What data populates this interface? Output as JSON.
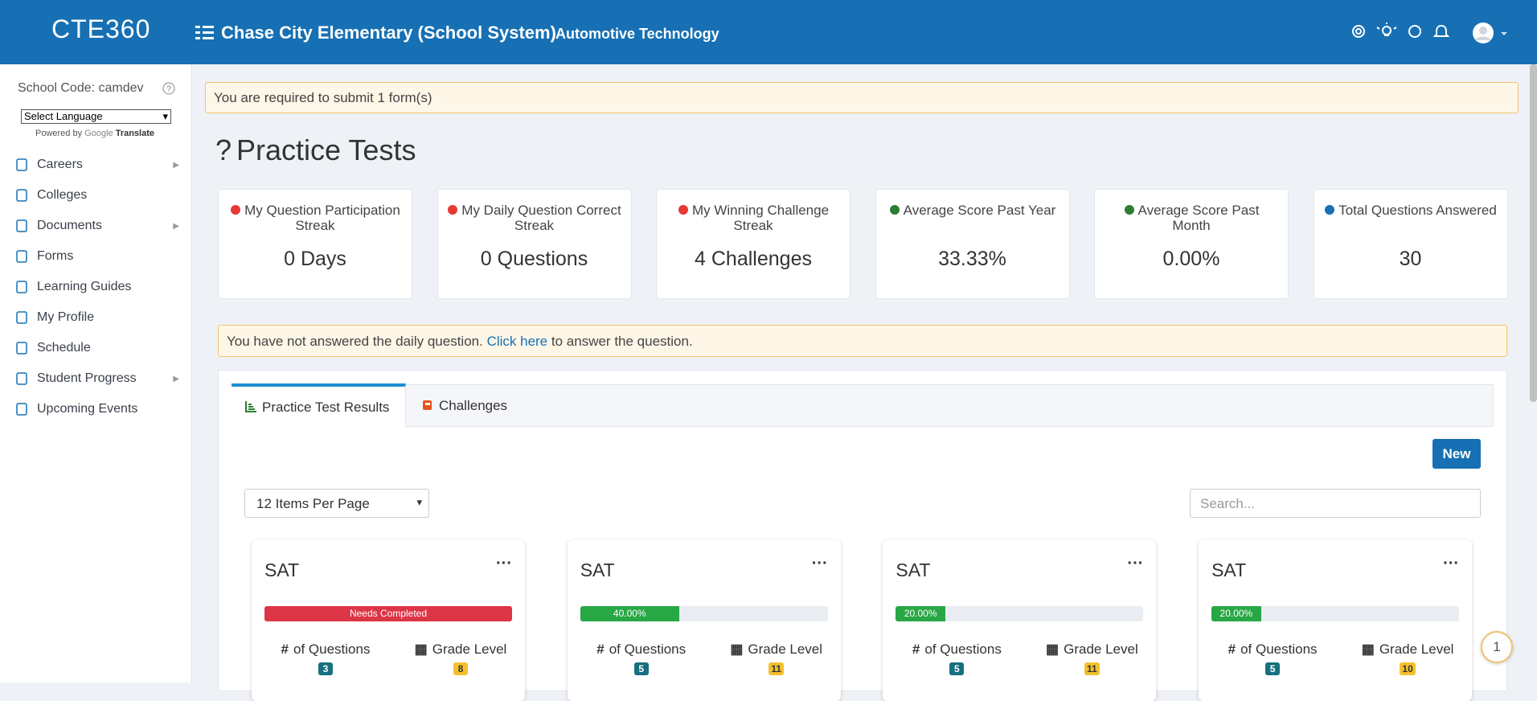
{
  "header": {
    "logo": "CTE360",
    "title": "Chase City Elementary (School System)",
    "subtitle": "Automotive Technology"
  },
  "sidebar": {
    "school_code": "School Code: camdev",
    "language_select": "Select Language",
    "powered_by": "Powered by",
    "google": "Google",
    "translate": "Translate",
    "items": [
      "Careers",
      "Colleges",
      "Documents",
      "Forms",
      "Learning Guides",
      "My Profile",
      "Schedule",
      "Student Progress",
      "Upcoming Events"
    ]
  },
  "alert": "You are required to submit 1 form(s)",
  "page_title": "Practice Tests",
  "stats": [
    {
      "label": "My Question Participation Streak",
      "value": "0 Days"
    },
    {
      "label": "My Daily Question Correct Streak",
      "value": "0 Questions"
    },
    {
      "label": "My Winning Challenge Streak",
      "value": "4 Challenges"
    },
    {
      "label": "Average Score Past Year",
      "value": "33.33%"
    },
    {
      "label": "Average Score Past Month",
      "value": "0.00%"
    },
    {
      "label": "Total Questions Answered",
      "value": "30"
    }
  ],
  "daily_notice": {
    "before": "You have not answered the daily question.",
    "link": "Click here",
    "after": "to answer the question."
  },
  "tabs": [
    "Practice Test Results",
    "Challenges"
  ],
  "new_button": "New",
  "per_page": "12 Items Per Page",
  "search_placeholder": "Search...",
  "cards": [
    {
      "title": "SAT",
      "status": "Needs Completed",
      "questions_label": "of Questions",
      "questions": "3",
      "grade_label": "Grade Level",
      "grade": "8"
    },
    {
      "title": "SAT",
      "progress": 40,
      "progress_label": "40.00%",
      "questions_label": "of Questions",
      "questions": "5",
      "grade_label": "Grade Level",
      "grade": "11"
    },
    {
      "title": "SAT",
      "progress": 20,
      "progress_label": "20.00%",
      "questions_label": "of Questions",
      "questions": "5",
      "grade_label": "Grade Level",
      "grade": "11"
    },
    {
      "title": "SAT",
      "progress": 20,
      "progress_label": "20.00%",
      "questions_label": "of Questions",
      "questions": "5",
      "grade_label": "Grade Level",
      "grade": "10"
    }
  ],
  "help_badge": "1"
}
